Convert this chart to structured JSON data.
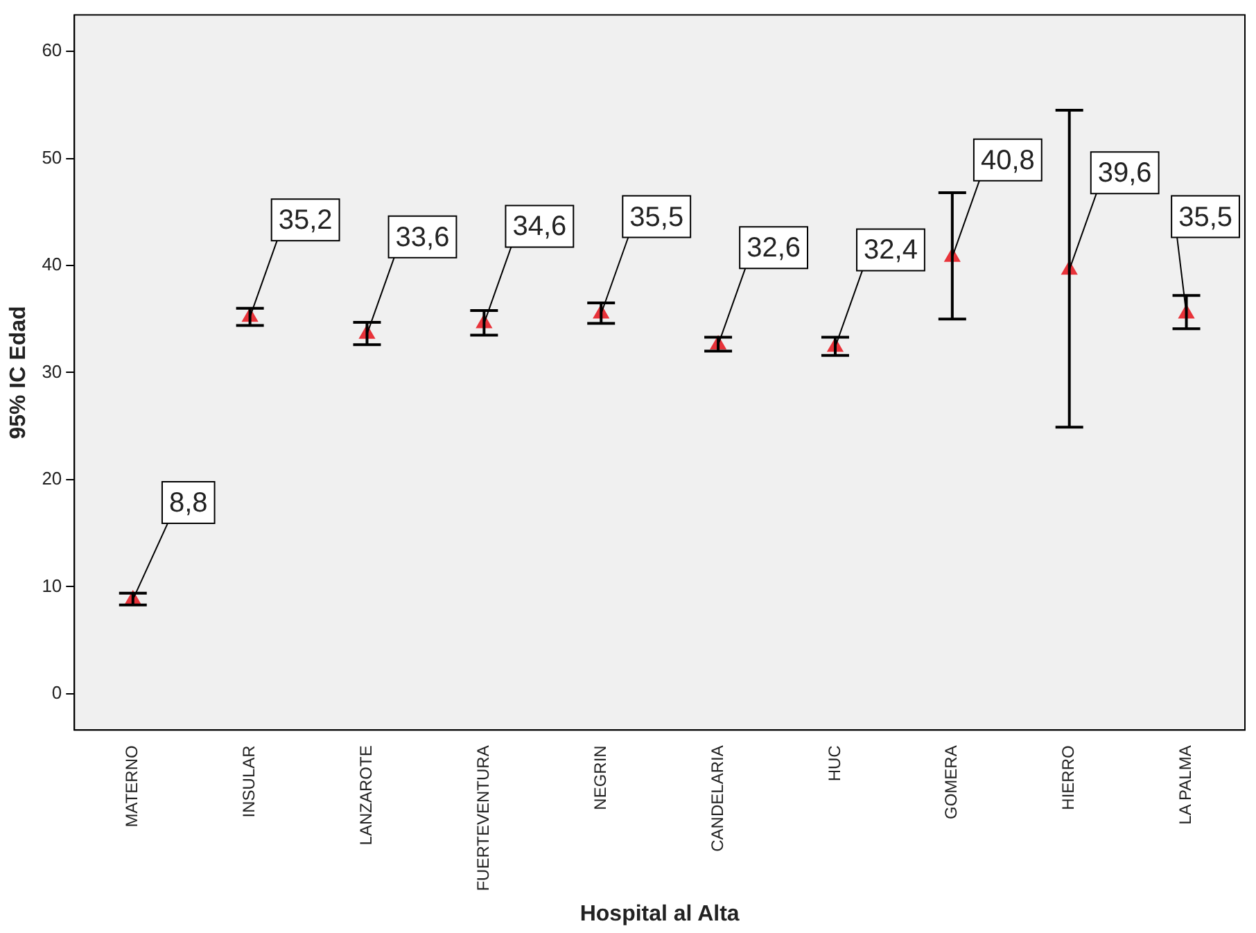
{
  "chart_data": {
    "type": "scatter",
    "xlabel": "Hospital al Alta",
    "ylabel": "95% IC Edad",
    "categories": [
      "MATERNO",
      "INSULAR",
      "LANZAROTE",
      "FUERTEVENTURA",
      "NEGRIN",
      "CANDELARIA",
      "HUC",
      "GOMERA",
      "HIERRO",
      "LA PALMA"
    ],
    "values": [
      8.8,
      35.2,
      33.6,
      34.6,
      35.5,
      32.6,
      32.4,
      40.8,
      39.6,
      35.5
    ],
    "errors": [
      [
        8.3,
        9.4
      ],
      [
        34.4,
        36.0
      ],
      [
        32.6,
        34.7
      ],
      [
        33.5,
        35.8
      ],
      [
        34.6,
        36.5
      ],
      [
        32.0,
        33.3
      ],
      [
        31.6,
        33.3
      ],
      [
        35.0,
        46.8
      ],
      [
        24.9,
        54.5
      ],
      [
        34.1,
        37.2
      ]
    ],
    "value_labels": [
      "8,8",
      "35,2",
      "33,6",
      "34,6",
      "35,5",
      "32,6",
      "32,4",
      "40,8",
      "39,6",
      "35,5"
    ],
    "color": "#e8333a",
    "marker": "triangle",
    "grid": false,
    "legend": false,
    "ylim": [
      -3.4,
      63.4
    ],
    "yticks": [
      0,
      10,
      20,
      30,
      40,
      50,
      60
    ]
  }
}
